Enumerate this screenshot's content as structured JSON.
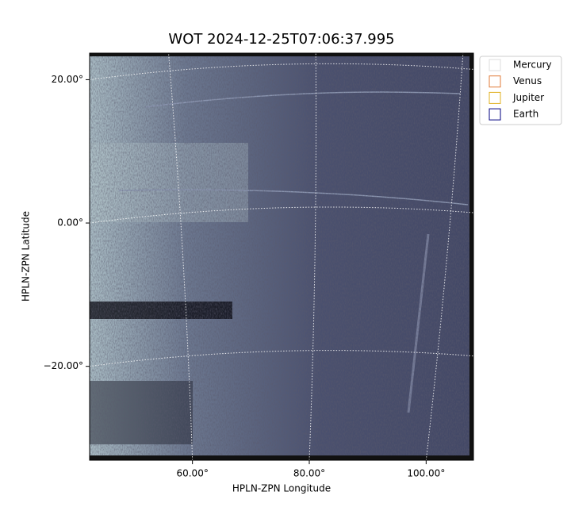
{
  "chart_data": {
    "type": "image",
    "title": "WOT 2024-12-25T07:06:37.995",
    "xlabel": "HPLN-ZPN Longitude",
    "ylabel": "HPLN-ZPN Latitude",
    "xlim": [
      42.4,
      108.1
    ],
    "ylim": [
      -33.1,
      23.7
    ],
    "xticks": [
      {
        "value": 60,
        "label": "60.00°"
      },
      {
        "value": 80,
        "label": "80.00°"
      },
      {
        "value": 100,
        "label": "100.00°"
      }
    ],
    "yticks": [
      {
        "value": -20,
        "label": "−20.00°"
      },
      {
        "value": 0,
        "label": "0.00°"
      },
      {
        "value": 20,
        "label": "20.00°"
      }
    ],
    "grid": true,
    "legend": "outside upper right",
    "series": [
      {
        "name": "Mercury",
        "color": "#dddddd"
      },
      {
        "name": "Venus",
        "color": "#e07b39"
      },
      {
        "name": "Jupiter",
        "color": "#e0b020"
      },
      {
        "name": "Earth",
        "color": "#000080"
      }
    ]
  }
}
